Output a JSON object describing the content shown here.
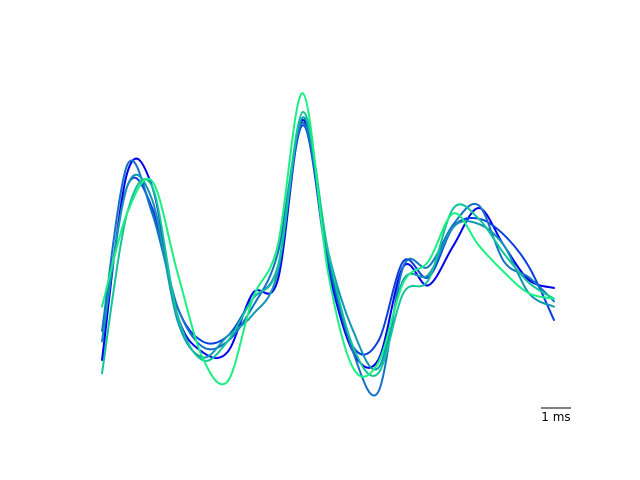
{
  "chart_data": {
    "type": "line",
    "title": "",
    "xlabel": "",
    "ylabel": "",
    "axes_visible": false,
    "grid": false,
    "legend": "none",
    "xlim": [
      0,
      9.0
    ],
    "ylim": [
      0,
      1
    ],
    "scale_bar": {
      "length": 1,
      "label": "1 ms"
    },
    "x": [
      0.0,
      0.5,
      1.0,
      1.5,
      2.0,
      2.5,
      3.0,
      3.5,
      4.0,
      4.5,
      5.0,
      5.5,
      6.0,
      6.5,
      7.0,
      7.5,
      8.0,
      8.5,
      9.0
    ],
    "series": [
      {
        "color": "#0000ee",
        "values": [
          0.05,
          0.75,
          0.7,
          0.22,
          0.08,
          0.08,
          0.3,
          0.35,
          0.95,
          0.4,
          0.08,
          0.05,
          0.4,
          0.33,
          0.48,
          0.62,
          0.48,
          0.35,
          0.32
        ]
      },
      {
        "color": "#0a3fe0",
        "values": [
          0.12,
          0.7,
          0.62,
          0.25,
          0.12,
          0.14,
          0.28,
          0.4,
          0.93,
          0.42,
          0.1,
          0.12,
          0.42,
          0.36,
          0.55,
          0.58,
          0.52,
          0.4,
          0.2
        ]
      },
      {
        "color": "#1570c8",
        "values": [
          0.16,
          0.78,
          0.6,
          0.25,
          0.1,
          0.12,
          0.25,
          0.45,
          0.94,
          0.44,
          0.08,
          -0.07,
          0.4,
          0.4,
          0.56,
          0.63,
          0.42,
          0.36,
          0.27
        ]
      },
      {
        "color": "#1296b4",
        "values": [
          0.12,
          0.7,
          0.65,
          0.2,
          0.06,
          0.14,
          0.22,
          0.38,
          0.96,
          0.46,
          0.16,
          0.02,
          0.35,
          0.37,
          0.55,
          0.56,
          0.48,
          0.3,
          0.25
        ]
      },
      {
        "color": "#12c49a",
        "values": [
          0.0,
          0.6,
          0.7,
          0.22,
          0.05,
          0.12,
          0.28,
          0.4,
          0.98,
          0.46,
          0.1,
          0.0,
          0.3,
          0.35,
          0.62,
          0.58,
          0.45,
          0.34,
          0.28
        ]
      },
      {
        "color": "#18f080",
        "values": [
          0.25,
          0.6,
          0.72,
          0.38,
          0.06,
          -0.03,
          0.28,
          0.48,
          1.05,
          0.38,
          0.02,
          0.04,
          0.34,
          0.42,
          0.6,
          0.48,
          0.38,
          0.3,
          0.28
        ]
      }
    ]
  }
}
